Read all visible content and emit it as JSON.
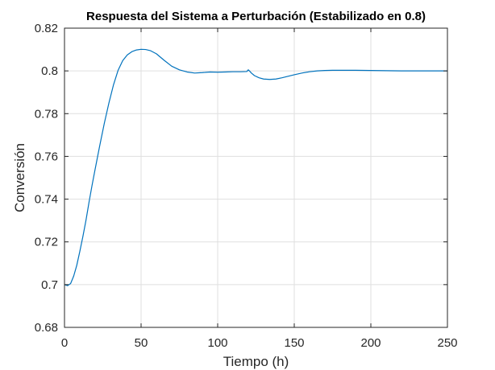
{
  "chart_data": {
    "type": "line",
    "title": "Respuesta del Sistema a Perturbación (Estabilizado en 0.8)",
    "xlabel": "Tiempo (h)",
    "ylabel": "Conversión",
    "xlim": [
      0,
      250
    ],
    "ylim": [
      0.68,
      0.82
    ],
    "xticks": [
      0,
      50,
      100,
      150,
      200,
      250
    ],
    "xtick_labels": [
      "0",
      "50",
      "100",
      "150",
      "200",
      "250"
    ],
    "yticks": [
      0.68,
      0.7,
      0.72,
      0.74,
      0.76,
      0.78,
      0.8,
      0.82
    ],
    "ytick_labels": [
      "0.68",
      "0.7",
      "0.72",
      "0.74",
      "0.76",
      "0.78",
      "0.8",
      "0.82"
    ],
    "grid": true,
    "series": [
      {
        "color": "#0072bd",
        "x": [
          0,
          2,
          4,
          6,
          8,
          10,
          12,
          14,
          16,
          18,
          20,
          23,
          26,
          29,
          32,
          35,
          38,
          41,
          44,
          47,
          50,
          53,
          56,
          60,
          65,
          70,
          75,
          80,
          85,
          90,
          95,
          100,
          105,
          110,
          115,
          119,
          120,
          121,
          122,
          124,
          127,
          130,
          134,
          138,
          142,
          146,
          150,
          155,
          160,
          165,
          170,
          175,
          180,
          190,
          200,
          210,
          220,
          230,
          240,
          250
        ],
        "y": [
          0.7,
          0.6995,
          0.7005,
          0.704,
          0.709,
          0.7155,
          0.7225,
          0.73,
          0.7385,
          0.7465,
          0.754,
          0.765,
          0.7755,
          0.785,
          0.7935,
          0.8003,
          0.8048,
          0.8075,
          0.809,
          0.8098,
          0.8101,
          0.81,
          0.8095,
          0.808,
          0.805,
          0.8022,
          0.8005,
          0.7995,
          0.799,
          0.7992,
          0.7995,
          0.7994,
          0.7995,
          0.7996,
          0.7996,
          0.7997,
          0.8005,
          0.7998,
          0.799,
          0.7978,
          0.7968,
          0.7962,
          0.796,
          0.7962,
          0.7968,
          0.7975,
          0.7982,
          0.799,
          0.7996,
          0.8,
          0.8002,
          0.8003,
          0.8003,
          0.8003,
          0.8002,
          0.8001,
          0.8,
          0.8,
          0.8,
          0.8
        ]
      }
    ]
  }
}
